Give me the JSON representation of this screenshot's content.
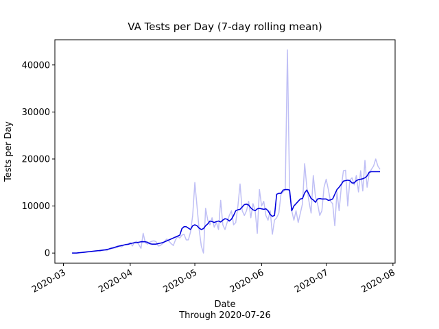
{
  "chart_data": {
    "type": "line",
    "title": "VA Tests per Day (7-day rolling mean)",
    "xlabel": "Date",
    "x_subtitle": "Through 2020-07-26",
    "ylabel": "Tests per Day",
    "xlim": [
      "2020-02-26",
      "2020-08-02"
    ],
    "ylim": [
      -2160,
      45360
    ],
    "xticks": [
      {
        "value": "2020-03-01",
        "label": "2020-03"
      },
      {
        "value": "2020-04-01",
        "label": "2020-04"
      },
      {
        "value": "2020-05-01",
        "label": "2020-05"
      },
      {
        "value": "2020-06-01",
        "label": "2020-06"
      },
      {
        "value": "2020-07-01",
        "label": "2020-07"
      },
      {
        "value": "2020-08-01",
        "label": "2020-08"
      }
    ],
    "yticks": [
      0,
      10000,
      20000,
      30000,
      40000
    ],
    "x_start": "2020-03-05",
    "x_end": "2020-07-26",
    "series": [
      {
        "color": "#bfbff5",
        "width": 1.5,
        "values": [
          0,
          0,
          0,
          50,
          100,
          100,
          150,
          200,
          250,
          300,
          350,
          400,
          500,
          400,
          600,
          700,
          500,
          800,
          900,
          1000,
          1100,
          1200,
          1500,
          1300,
          1700,
          1800,
          2000,
          2200,
          1500,
          2300,
          2500,
          1800,
          1000,
          4200,
          2200,
          1900,
          2300,
          2500,
          2600,
          2400,
          1500,
          1600,
          2000,
          2500,
          3000,
          2500,
          2000,
          1600,
          2800,
          3500,
          3200,
          3800,
          4000,
          2800,
          2800,
          4500,
          8000,
          15000,
          10000,
          5000,
          1500,
          0,
          9500,
          7000,
          6000,
          7500,
          5500,
          6500,
          5000,
          11200,
          6000,
          5000,
          6500,
          8000,
          9000,
          6000,
          6500,
          10000,
          14700,
          9000,
          8000,
          9000,
          11000,
          7500,
          10500,
          9000,
          4200,
          13500,
          10000,
          11000,
          8000,
          7000,
          9000,
          4000,
          7000,
          7500,
          8500,
          12500,
          13000,
          13500,
          43200,
          13000,
          9000,
          7000,
          9000,
          6500,
          8500,
          10500,
          19000,
          14000,
          11000,
          8500,
          16500,
          12000,
          10500,
          8000,
          9000,
          14000,
          15700,
          13500,
          11000,
          10500,
          5800,
          13000,
          9000,
          14000,
          17500,
          17600,
          10000,
          15500,
          16000,
          14500,
          16500,
          13000,
          17500,
          13200,
          19700,
          14000,
          17000,
          17800,
          18500,
          20000,
          18500,
          17800
        ]
      },
      {
        "color": "#0000dd",
        "width": 1.6,
        "values": [
          0,
          0,
          0,
          50,
          100,
          150,
          200,
          250,
          300,
          350,
          400,
          450,
          500,
          550,
          600,
          650,
          750,
          850,
          1000,
          1100,
          1250,
          1400,
          1500,
          1600,
          1700,
          1800,
          1850,
          2000,
          2100,
          2200,
          2200,
          2300,
          2400,
          2400,
          2400,
          2300,
          2000,
          1900,
          1900,
          1900,
          2000,
          2100,
          2200,
          2400,
          2600,
          2800,
          3000,
          3200,
          3400,
          3600,
          3800,
          5200,
          5600,
          5600,
          5300,
          5000,
          5800,
          6000,
          5800,
          5300,
          5000,
          5200,
          5800,
          6200,
          6800,
          6700,
          6500,
          6700,
          6800,
          6600,
          7000,
          7300,
          7200,
          6800,
          7200,
          8000,
          9000,
          9200,
          9300,
          9800,
          10300,
          10400,
          10200,
          9600,
          9200,
          9000,
          9400,
          9500,
          9400,
          9300,
          9400,
          9000,
          8200,
          7800,
          8000,
          12500,
          12700,
          12700,
          13400,
          13500,
          13500,
          13400,
          9000,
          10000,
          10500,
          11000,
          11500,
          11600,
          12800,
          13400,
          12500,
          11600,
          11300,
          10800,
          11500,
          11600,
          11500,
          11500,
          11500,
          11200,
          11300,
          11500,
          12500,
          13500,
          14000,
          14600,
          15300,
          15400,
          15500,
          15400,
          14900,
          14900,
          15400,
          15600,
          15700,
          15800,
          16000,
          16400,
          17200,
          17300,
          17300,
          17300,
          17300,
          17300
        ]
      }
    ]
  }
}
